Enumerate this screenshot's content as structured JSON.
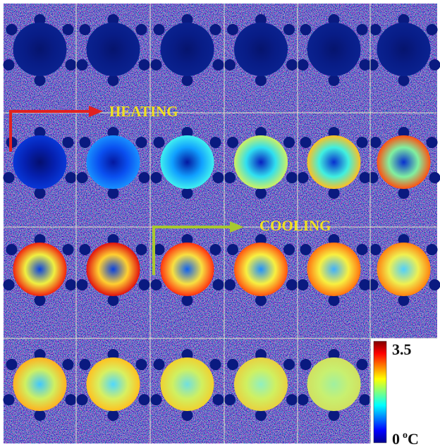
{
  "annotations": {
    "heating": "HEATING",
    "cooling": "COOLING"
  },
  "colorbar": {
    "max": 3.5,
    "min": 0,
    "unit_degree": "o",
    "unit": "C"
  }
}
